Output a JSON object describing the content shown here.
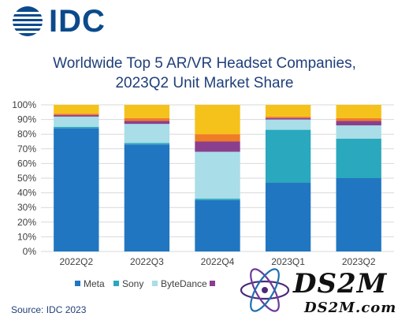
{
  "logo": {
    "text": "IDC"
  },
  "source": "Source: IDC 2023",
  "watermark": {
    "big": "DS2M",
    "small": "DS2M.com"
  },
  "colors": {
    "Meta": "#2176c1",
    "Sony": "#2aa8bd",
    "ByteDance": "#a9dde7",
    "Other1": "#8a3f8e",
    "Other2": "#f07c26",
    "Others": "#f5c21b"
  },
  "chart_data": {
    "type": "bar",
    "stacked": true,
    "title": "Worldwide Top 5 AR/VR Headset Companies,\n2023Q2 Unit Market Share",
    "title_lines": [
      "Worldwide Top 5 AR/VR Headset Companies,",
      "2023Q2 Unit Market Share"
    ],
    "categories": [
      "2022Q2",
      "2022Q3",
      "2022Q4",
      "2023Q1",
      "2023Q2"
    ],
    "ylim": [
      0,
      100
    ],
    "y_ticks": [
      "0%",
      "10%",
      "20%",
      "30%",
      "40%",
      "50%",
      "60%",
      "70%",
      "80%",
      "90%",
      "100%"
    ],
    "grid": true,
    "legend_position": "bottom",
    "series": [
      {
        "name": "Meta",
        "color": "#2176c1",
        "values": [
          84,
          73,
          35,
          47,
          50
        ]
      },
      {
        "name": "Sony",
        "color": "#2aa8bd",
        "values": [
          1,
          1,
          1,
          36,
          27
        ]
      },
      {
        "name": "ByteDance",
        "color": "#a9dde7",
        "values": [
          7,
          13,
          32,
          7,
          9
        ]
      },
      {
        "color": "#8a3f8e",
        "values": [
          1,
          2,
          7,
          1,
          3
        ]
      },
      {
        "color": "#f07c26",
        "values": [
          1,
          2,
          5,
          1,
          2
        ]
      },
      {
        "color": "#f5c21b",
        "values": [
          6,
          9,
          20,
          8,
          9
        ]
      }
    ],
    "legend_visible": [
      {
        "name": "Meta",
        "color": "#2176c1"
      },
      {
        "name": "Sony",
        "color": "#2aa8bd"
      },
      {
        "name": "ByteDance",
        "color": "#a9dde7"
      },
      {
        "name": "",
        "color": "#8a3f8e"
      }
    ]
  }
}
